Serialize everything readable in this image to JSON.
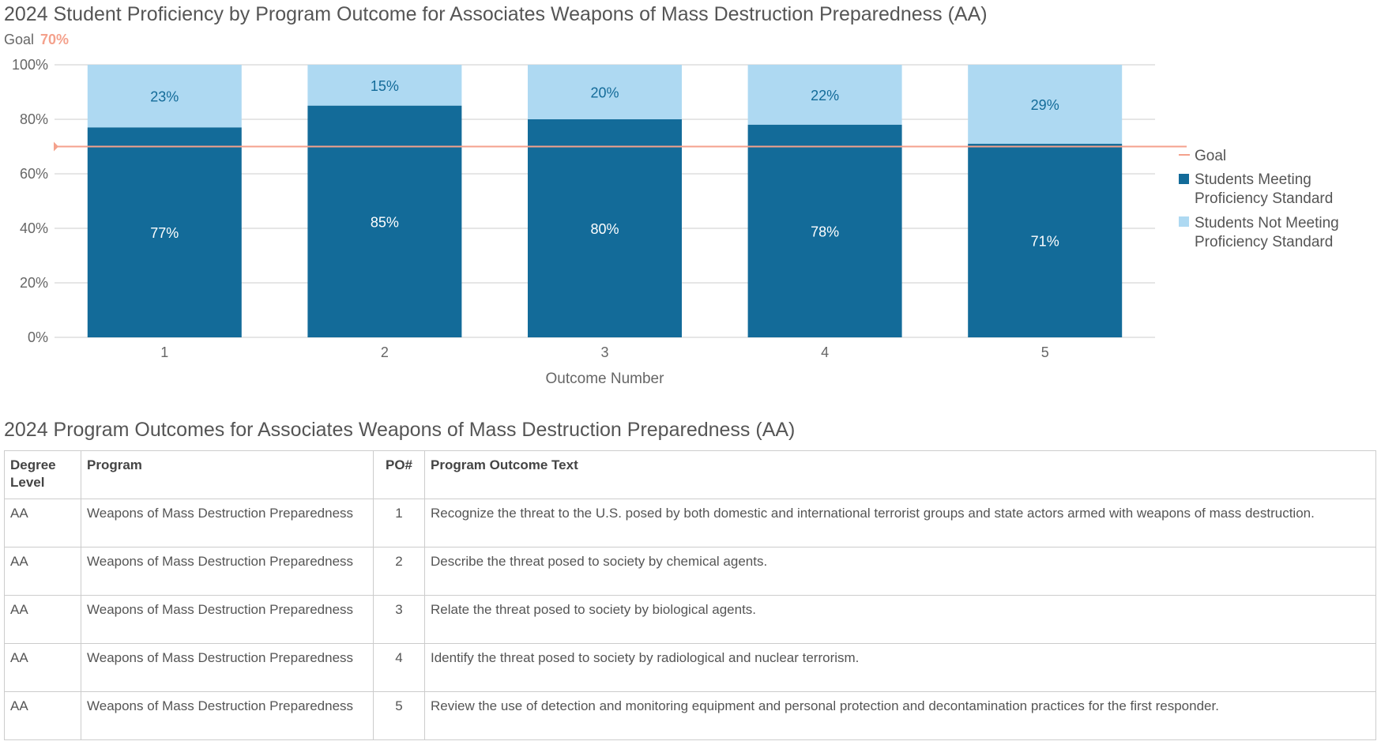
{
  "chart_data": {
    "type": "bar",
    "stacked": true,
    "title": "2024 Student Proficiency by Program Outcome for Associates Weapons of Mass Destruction Preparedness (AA)",
    "goal_label": "Goal",
    "goal_value": 70,
    "goal_text": "70%",
    "xlabel": "Outcome Number",
    "ylabel": "",
    "ylim": [
      0,
      100
    ],
    "yticks": [
      "0%",
      "20%",
      "40%",
      "60%",
      "80%",
      "100%"
    ],
    "categories": [
      "1",
      "2",
      "3",
      "4",
      "5"
    ],
    "series": [
      {
        "name": "Students Meeting Proficiency Standard",
        "values": [
          77,
          85,
          80,
          78,
          71
        ],
        "labels": [
          "77%",
          "85%",
          "80%",
          "78%",
          "71%"
        ],
        "color": "#136b99"
      },
      {
        "name": "Students Not Meeting Proficiency Standard",
        "values": [
          23,
          15,
          20,
          22,
          29
        ],
        "labels": [
          "23%",
          "15%",
          "20%",
          "22%",
          "29%"
        ],
        "color": "#aed9f2"
      }
    ],
    "goal_color": "#f4a18c",
    "grid": true,
    "legend_position": "right",
    "legend": [
      "Goal",
      "Students Meeting",
      "Proficiency Standard",
      "Students Not Meeting",
      "Proficiency Standard"
    ]
  },
  "table": {
    "title": "2024 Program Outcomes for Associates Weapons of Mass Destruction Preparedness (AA)",
    "headers": [
      "Degree Level",
      "Program",
      "PO#",
      "Program Outcome Text"
    ],
    "rows": [
      [
        "AA",
        "Weapons of Mass Destruction Preparedness",
        "1",
        "Recognize the threat to the U.S. posed by both domestic and international terrorist groups and state actors armed with weapons of mass destruction."
      ],
      [
        "AA",
        "Weapons of Mass Destruction Preparedness",
        "2",
        "Describe the threat posed to society by chemical agents."
      ],
      [
        "AA",
        "Weapons of Mass Destruction Preparedness",
        "3",
        "Relate the threat posed to society by biological agents."
      ],
      [
        "AA",
        "Weapons of Mass Destruction Preparedness",
        "4",
        "Identify the threat posed to society by radiological and nuclear terrorism."
      ],
      [
        "AA",
        "Weapons of Mass Destruction Preparedness",
        "5",
        "Review the use of detection and monitoring equipment and personal protection and decontamination practices for the first responder."
      ]
    ]
  }
}
